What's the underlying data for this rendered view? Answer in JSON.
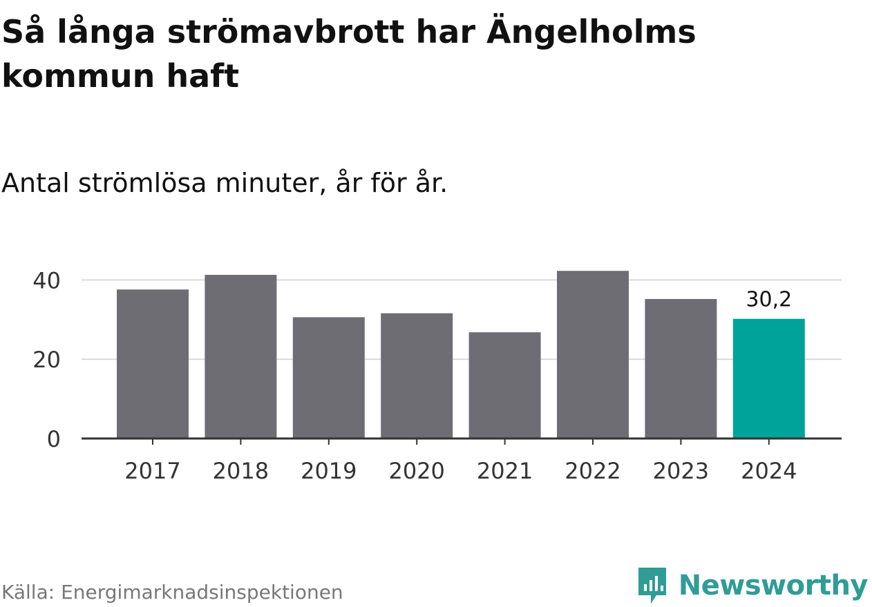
{
  "title": "Så långa strömavbrott har Ängelholms kommun haft",
  "subtitle": "Antal strömlösa minuter, år för år.",
  "source": "Källa: Energimarknadsinspektionen",
  "brand": {
    "name": "Newsworthy",
    "icon": "newsworthy-logo-icon",
    "color": "#2f9c96"
  },
  "colors": {
    "bar": "#6e6d73",
    "highlight": "#00a39a",
    "grid": "#d9d9d9",
    "axis": "#333333"
  },
  "chart_data": {
    "type": "bar",
    "title": "Så långa strömavbrott har Ängelholms kommun haft",
    "subtitle": "Antal strömlösa minuter, år för år.",
    "xlabel": "",
    "ylabel": "",
    "categories": [
      "2017",
      "2018",
      "2019",
      "2020",
      "2021",
      "2022",
      "2023",
      "2024"
    ],
    "values": [
      37.6,
      41.3,
      30.6,
      31.6,
      26.8,
      42.3,
      35.2,
      30.2
    ],
    "ylim": [
      0,
      46
    ],
    "yticks": [
      0,
      20,
      40
    ],
    "ytick_labels": [
      "0",
      "20",
      "40"
    ],
    "grid": true,
    "highlight_index": 7,
    "data_labels": [
      {
        "index": 7,
        "text": "30,2"
      }
    ]
  }
}
